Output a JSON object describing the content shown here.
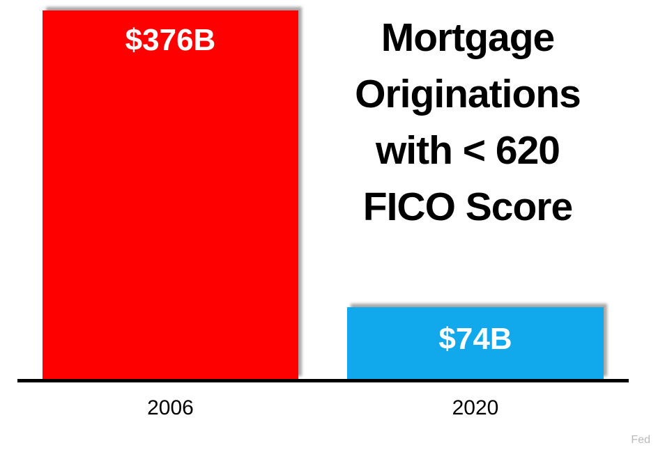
{
  "chart_data": {
    "type": "bar",
    "title": "Mortgage Originations with < 620 FICO Score",
    "title_lines": [
      "Mortgage",
      "Originations",
      "with < 620",
      "FICO Score"
    ],
    "categories": [
      "2006",
      "2020"
    ],
    "values": [
      376,
      74
    ],
    "value_labels": [
      "$376B",
      "$74B"
    ],
    "ylim": [
      0,
      376
    ],
    "grid": "off",
    "legend": "none",
    "bar_colors": [
      "#FF0000",
      "#12A9EC"
    ],
    "value_label_color": "#FFFFFF",
    "axis_color": "#000000",
    "title_color": "#000000"
  },
  "source": {
    "label": "Fed",
    "color": "#B9B9B9"
  }
}
